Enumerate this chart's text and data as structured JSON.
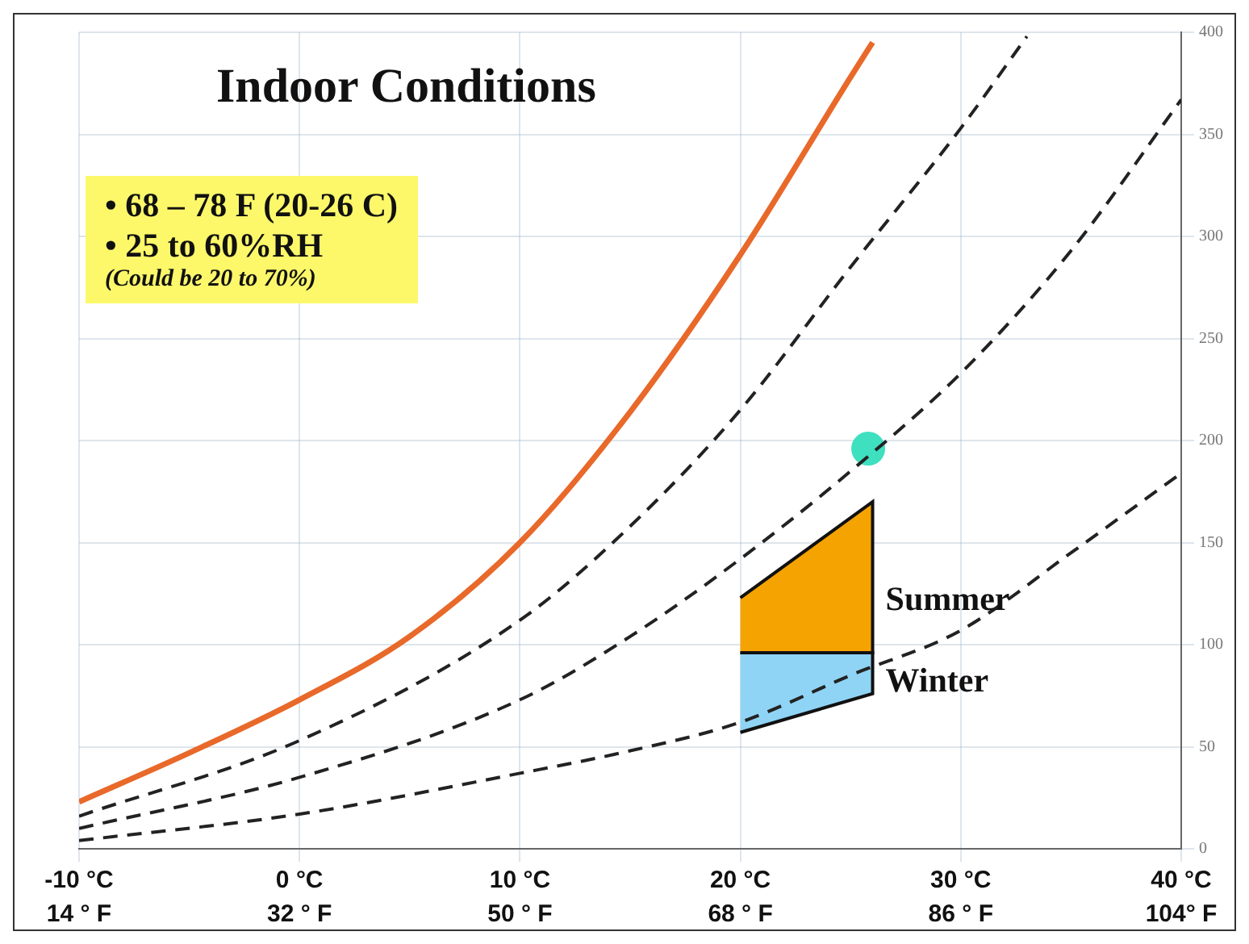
{
  "chart_data": {
    "type": "line",
    "title": "Indoor Conditions",
    "annotations": [
      "• 68 – 78 F (20-26 C)",
      "• 25 to 60%RH",
      "(Could be 20 to 70%)"
    ],
    "xlim": [
      -10,
      40
    ],
    "xticks": [
      {
        "value": -10,
        "label": "-10 °C"
      },
      {
        "value": 0,
        "label": "0 °C"
      },
      {
        "value": 10,
        "label": "10 °C"
      },
      {
        "value": 20,
        "label": "20 °C"
      },
      {
        "value": 30,
        "label": "30 °C"
      },
      {
        "value": 40,
        "label": "40 °C"
      }
    ],
    "x2lim": [
      14,
      104
    ],
    "x2ticks": [
      {
        "value": 14,
        "label": "14 ° F"
      },
      {
        "value": 32,
        "label": "32 ° F"
      },
      {
        "value": 50,
        "label": "50 ° F"
      },
      {
        "value": 68,
        "label": "68 ° F"
      },
      {
        "value": 86,
        "label": "86 ° F"
      },
      {
        "value": 104,
        "label": "104° F"
      }
    ],
    "ylim": [
      0,
      400
    ],
    "yticks": [
      0,
      50,
      100,
      150,
      200,
      250,
      300,
      350,
      400
    ],
    "grid": true,
    "legend": false,
    "marker": "none",
    "series": [
      {
        "type": "line",
        "color": "#e8692a",
        "line_style": "solid",
        "x": [
          -10,
          -5,
          0,
          5,
          10,
          15,
          20,
          25,
          26
        ],
        "values": [
          23,
          47,
          73,
          104,
          150,
          214,
          291,
          378,
          395
        ]
      },
      {
        "type": "line",
        "color": "#222222",
        "line_style": "dashed",
        "x": [
          -10,
          0,
          10,
          15,
          20,
          25,
          30,
          33
        ],
        "values": [
          16,
          53,
          112,
          158,
          215,
          285,
          353,
          398
        ]
      },
      {
        "type": "line",
        "color": "#222222",
        "line_style": "dashed",
        "x": [
          -10,
          0,
          10,
          15,
          20,
          25,
          30,
          35,
          40
        ],
        "values": [
          10,
          35,
          73,
          104,
          142,
          185,
          233,
          293,
          367
        ]
      },
      {
        "type": "line",
        "color": "#222222",
        "line_style": "dashed",
        "x": [
          -10,
          0,
          10,
          15,
          20,
          25,
          30,
          35,
          40
        ],
        "values": [
          4,
          17,
          37,
          48,
          62,
          85,
          107,
          145,
          184
        ]
      },
      {
        "type": "area",
        "name": "Summer",
        "color": "#f5a300",
        "x": [
          20,
          26,
          26,
          20
        ],
        "values": [
          123,
          170,
          96,
          96
        ]
      },
      {
        "type": "area",
        "name": "Winter",
        "color": "#8fd4f5",
        "x": [
          20,
          26,
          26,
          20
        ],
        "values": [
          96,
          96,
          76,
          57
        ]
      },
      {
        "type": "scatter",
        "color": "#3ee0c0",
        "marker": "circle",
        "x": [
          25.8
        ],
        "values": [
          196
        ]
      }
    ]
  }
}
